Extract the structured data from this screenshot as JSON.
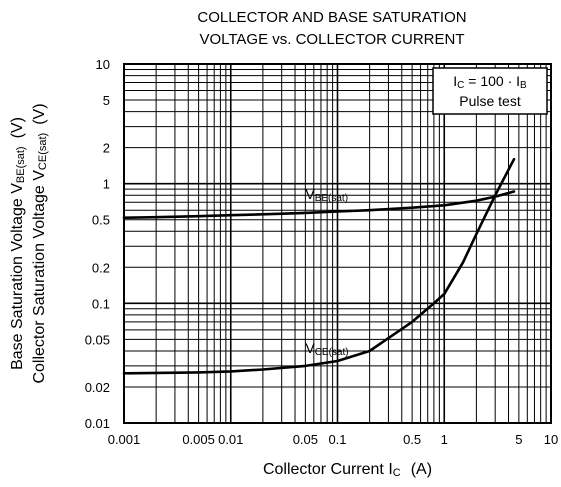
{
  "chart_data": {
    "type": "line",
    "title_lines": [
      "COLLECTOR AND BASE SATURATION",
      "VOLTAGE vs. COLLECTOR CURRENT"
    ],
    "xlabel": {
      "main": "Collector Current  I",
      "sub": "C",
      "unit": "(A)"
    },
    "ylabel_outer": {
      "main": "Base Saturation Voltage  V",
      "sub": "BE(sat)",
      "unit": "(V)"
    },
    "ylabel_inner": {
      "main": "Collector Saturation Voltage  V",
      "sub": "CE(sat)",
      "unit": "(V)"
    },
    "x_scale": "log",
    "y_scale": "log",
    "xlim": [
      0.001,
      10
    ],
    "ylim": [
      0.01,
      10
    ],
    "grid": true,
    "x_ticks": [
      {
        "v": 0.001,
        "label": "0.001"
      },
      {
        "v": 0.005,
        "label": "0.005"
      },
      {
        "v": 0.01,
        "label": "0.01"
      },
      {
        "v": 0.05,
        "label": "0.05"
      },
      {
        "v": 0.1,
        "label": "0.1"
      },
      {
        "v": 0.5,
        "label": "0.5"
      },
      {
        "v": 1,
        "label": "1"
      },
      {
        "v": 5,
        "label": "5"
      },
      {
        "v": 10,
        "label": "10"
      }
    ],
    "y_ticks": [
      {
        "v": 0.01,
        "label": "0.01"
      },
      {
        "v": 0.02,
        "label": "0.02"
      },
      {
        "v": 0.05,
        "label": "0.05"
      },
      {
        "v": 0.1,
        "label": "0.1"
      },
      {
        "v": 0.2,
        "label": "0.2"
      },
      {
        "v": 0.5,
        "label": "0.5"
      },
      {
        "v": 1,
        "label": "1"
      },
      {
        "v": 2,
        "label": "2"
      },
      {
        "v": 5,
        "label": "5"
      },
      {
        "v": 10,
        "label": "10"
      }
    ],
    "series": [
      {
        "name": "VBE(sat)",
        "label_main": "V",
        "label_sub": "BE(sat)",
        "x": [
          0.001,
          0.002,
          0.005,
          0.01,
          0.02,
          0.05,
          0.1,
          0.2,
          0.5,
          1,
          2,
          3,
          4.5
        ],
        "y": [
          0.52,
          0.525,
          0.535,
          0.545,
          0.555,
          0.57,
          0.585,
          0.6,
          0.63,
          0.66,
          0.72,
          0.78,
          0.86
        ]
      },
      {
        "name": "VCE(sat)",
        "label_main": "V",
        "label_sub": "CE(sat)",
        "x": [
          0.001,
          0.002,
          0.005,
          0.01,
          0.02,
          0.05,
          0.1,
          0.2,
          0.5,
          0.8,
          1,
          1.5,
          2,
          3,
          4.5
        ],
        "y": [
          0.026,
          0.0262,
          0.0265,
          0.027,
          0.028,
          0.03,
          0.033,
          0.04,
          0.07,
          0.1,
          0.12,
          0.22,
          0.38,
          0.8,
          1.6
        ]
      }
    ],
    "annotation": {
      "line1_main": "I",
      "line1_sub1": "C",
      "line1_mid": " = 100 · I",
      "line1_sub2": "B",
      "line2": "Pulse test",
      "placement": "top-right"
    }
  }
}
